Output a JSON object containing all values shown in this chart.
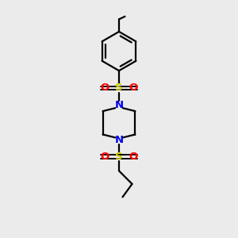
{
  "background_color": "#ebebeb",
  "bond_color": "#000000",
  "N_color": "#0000ee",
  "S_color": "#cccc00",
  "O_color": "#ff0000",
  "line_width": 1.6,
  "figsize": [
    3.0,
    3.0
  ],
  "dpi": 100,
  "xlim": [
    0,
    10
  ],
  "ylim": [
    0,
    10
  ]
}
